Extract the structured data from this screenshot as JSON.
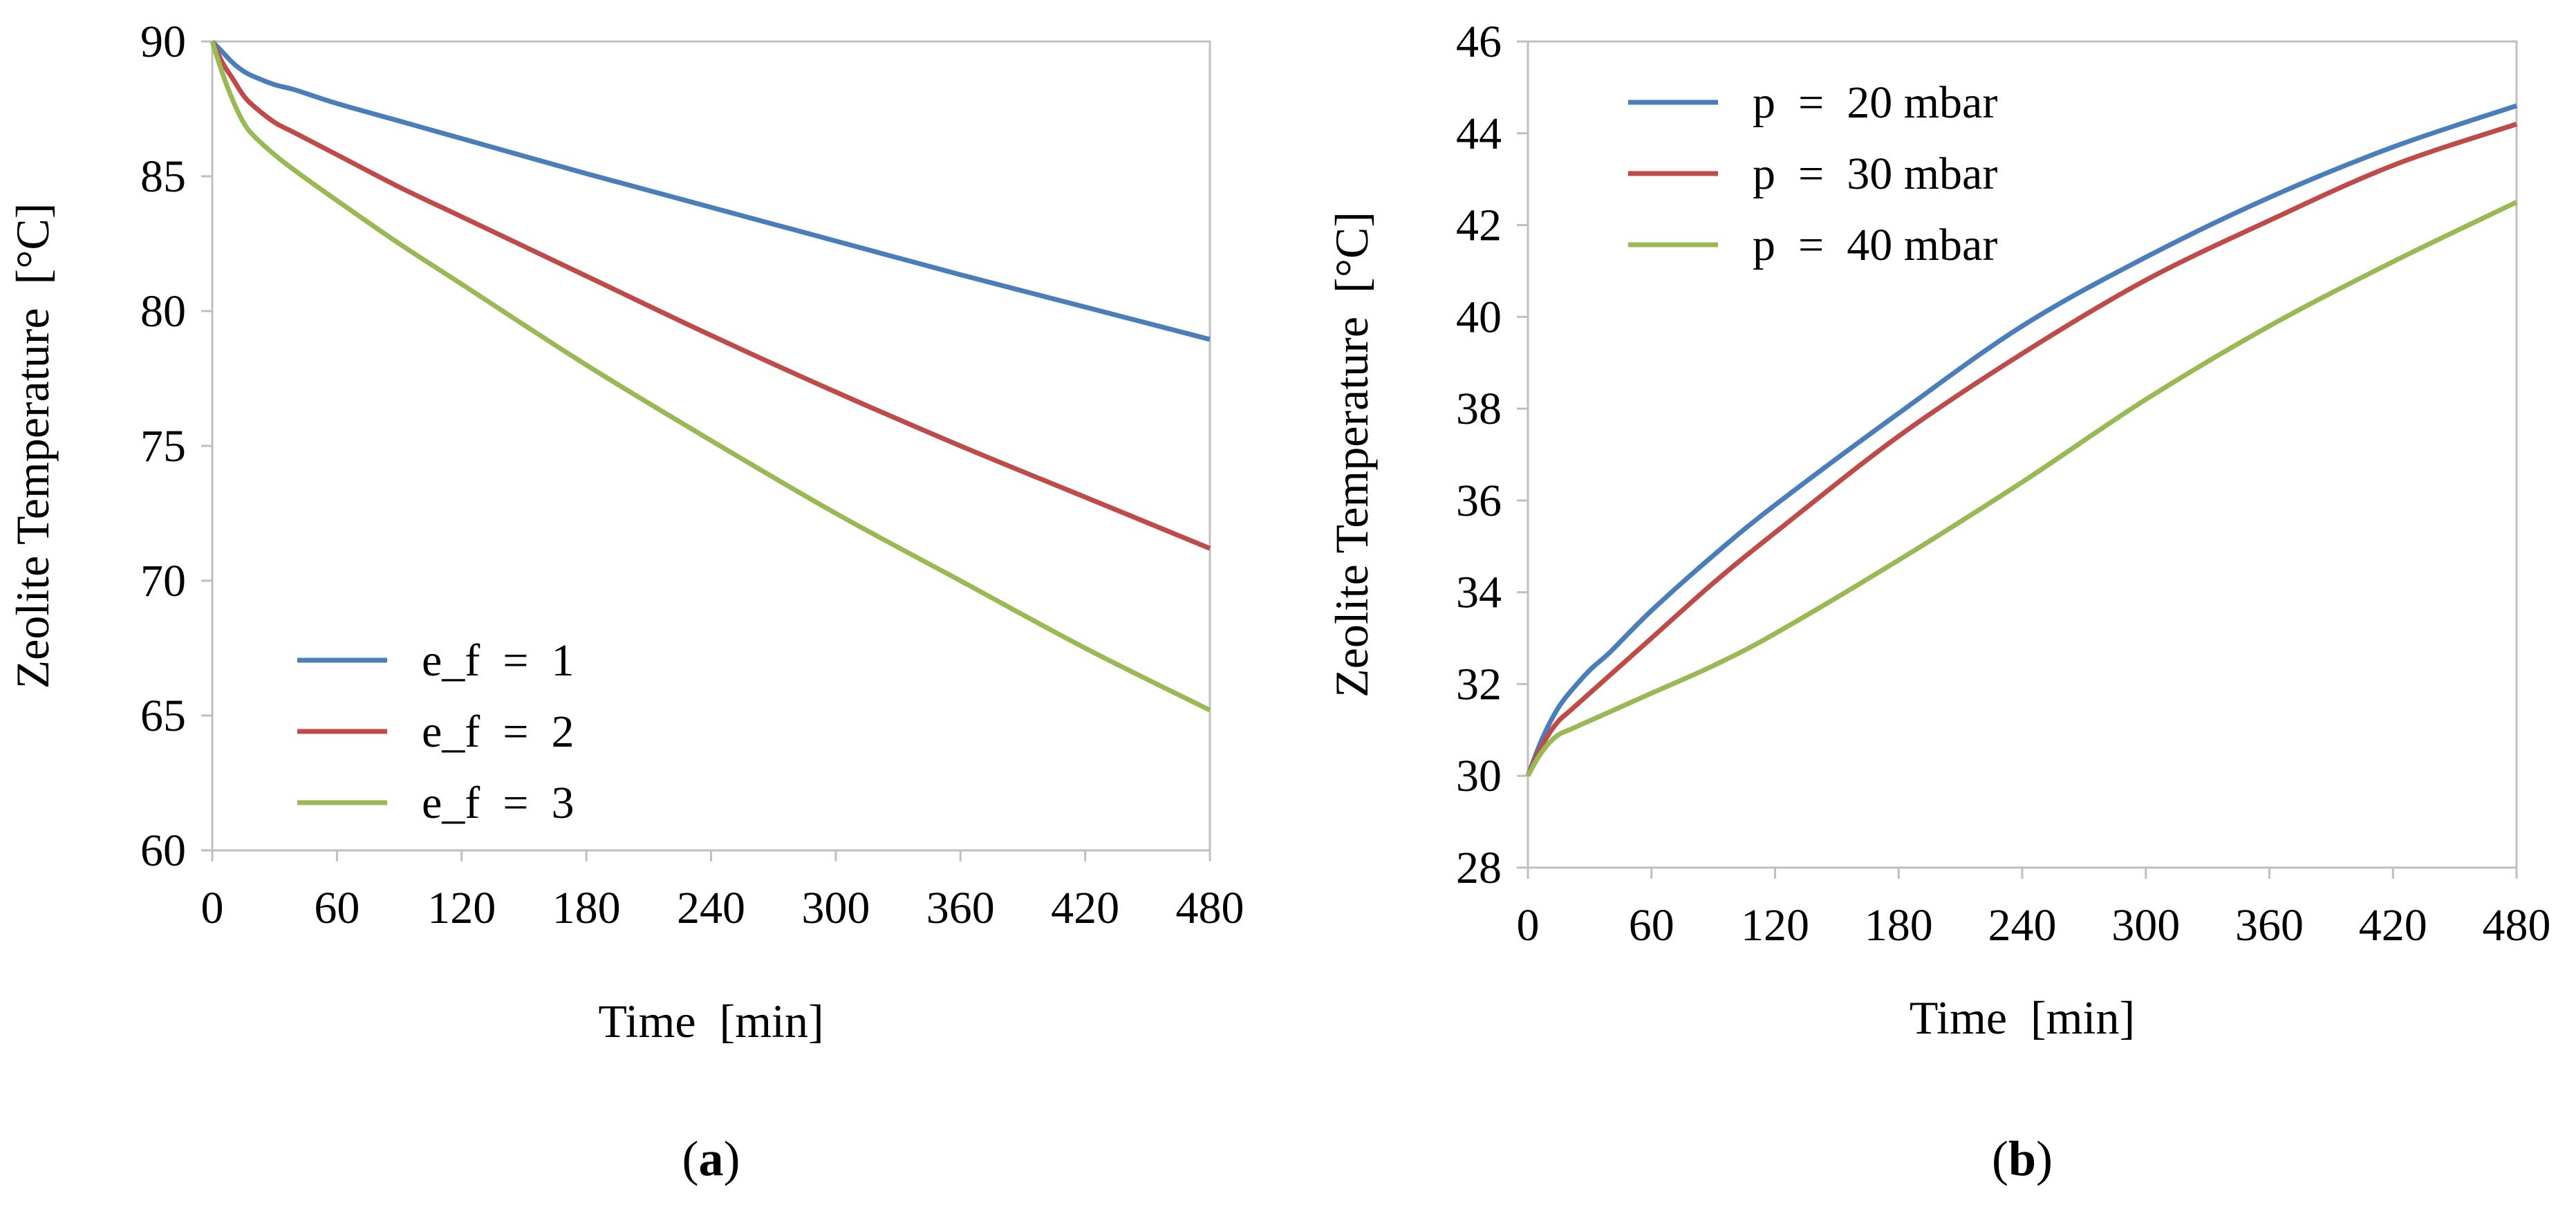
{
  "chart_data": [
    {
      "panel": "a",
      "type": "line",
      "title": "",
      "xlabel": "Time  [min]",
      "ylabel": "Zeolite Temperature  [°C]",
      "xlim": [
        0,
        480
      ],
      "ylim": [
        60,
        90
      ],
      "xticks": [
        0,
        60,
        120,
        180,
        240,
        300,
        360,
        420,
        480
      ],
      "yticks": [
        60,
        65,
        70,
        75,
        80,
        85,
        90
      ],
      "grid": false,
      "legend_position": "bottom-left",
      "caption": {
        "open": "(",
        "letter": "a",
        "close": ")"
      },
      "x": [
        0,
        5,
        10,
        15,
        20,
        30,
        40,
        60,
        90,
        120,
        180,
        240,
        300,
        360,
        420,
        480
      ],
      "series": [
        {
          "name": "e_f  =  1",
          "color": "#4a7ebb",
          "values": [
            90,
            89.6,
            89.2,
            88.9,
            88.7,
            88.4,
            88.2,
            87.7,
            87.05,
            86.4,
            85.1,
            83.85,
            82.6,
            81.35,
            80.15,
            78.95
          ]
        },
        {
          "name": "e_f  =  2",
          "color": "#be4b48",
          "values": [
            90,
            89.2,
            88.6,
            88.0,
            87.6,
            87.0,
            86.6,
            85.8,
            84.6,
            83.5,
            81.3,
            79.1,
            77.0,
            75.0,
            73.1,
            71.2
          ]
        },
        {
          "name": "e_f  =  3",
          "color": "#98b954",
          "values": [
            90,
            88.8,
            87.8,
            87.0,
            86.5,
            85.8,
            85.2,
            84.1,
            82.5,
            81.0,
            78.0,
            75.2,
            72.5,
            70.0,
            67.5,
            65.2
          ]
        }
      ]
    },
    {
      "panel": "b",
      "type": "line",
      "title": "",
      "xlabel": "Time  [min]",
      "ylabel": "Zeolite Temperature  [°C]",
      "xlim": [
        0,
        480
      ],
      "ylim": [
        28,
        46
      ],
      "xticks": [
        0,
        60,
        120,
        180,
        240,
        300,
        360,
        420,
        480
      ],
      "yticks": [
        28,
        30,
        32,
        34,
        36,
        38,
        40,
        42,
        44,
        46
      ],
      "grid": false,
      "legend_position": "top-left",
      "caption": {
        "open": "(",
        "letter": "b",
        "close": ")"
      },
      "x": [
        0,
        5,
        10,
        15,
        20,
        30,
        40,
        60,
        90,
        120,
        180,
        240,
        300,
        360,
        420,
        480
      ],
      "series": [
        {
          "name": "p  =  20 mbar",
          "color": "#4a7ebb",
          "values": [
            30,
            30.6,
            31.1,
            31.5,
            31.8,
            32.3,
            32.7,
            33.6,
            34.8,
            35.9,
            37.9,
            39.8,
            41.3,
            42.6,
            43.7,
            44.6
          ]
        },
        {
          "name": "p  =  30 mbar",
          "color": "#be4b48",
          "values": [
            30,
            30.5,
            30.9,
            31.2,
            31.4,
            31.8,
            32.2,
            33.0,
            34.2,
            35.3,
            37.4,
            39.2,
            40.8,
            42.1,
            43.3,
            44.2
          ]
        },
        {
          "name": "p  =  40 mbar",
          "color": "#98b954",
          "values": [
            30,
            30.4,
            30.7,
            30.9,
            31.0,
            31.2,
            31.4,
            31.8,
            32.4,
            33.1,
            34.7,
            36.4,
            38.2,
            39.8,
            41.2,
            42.5
          ]
        }
      ]
    }
  ]
}
